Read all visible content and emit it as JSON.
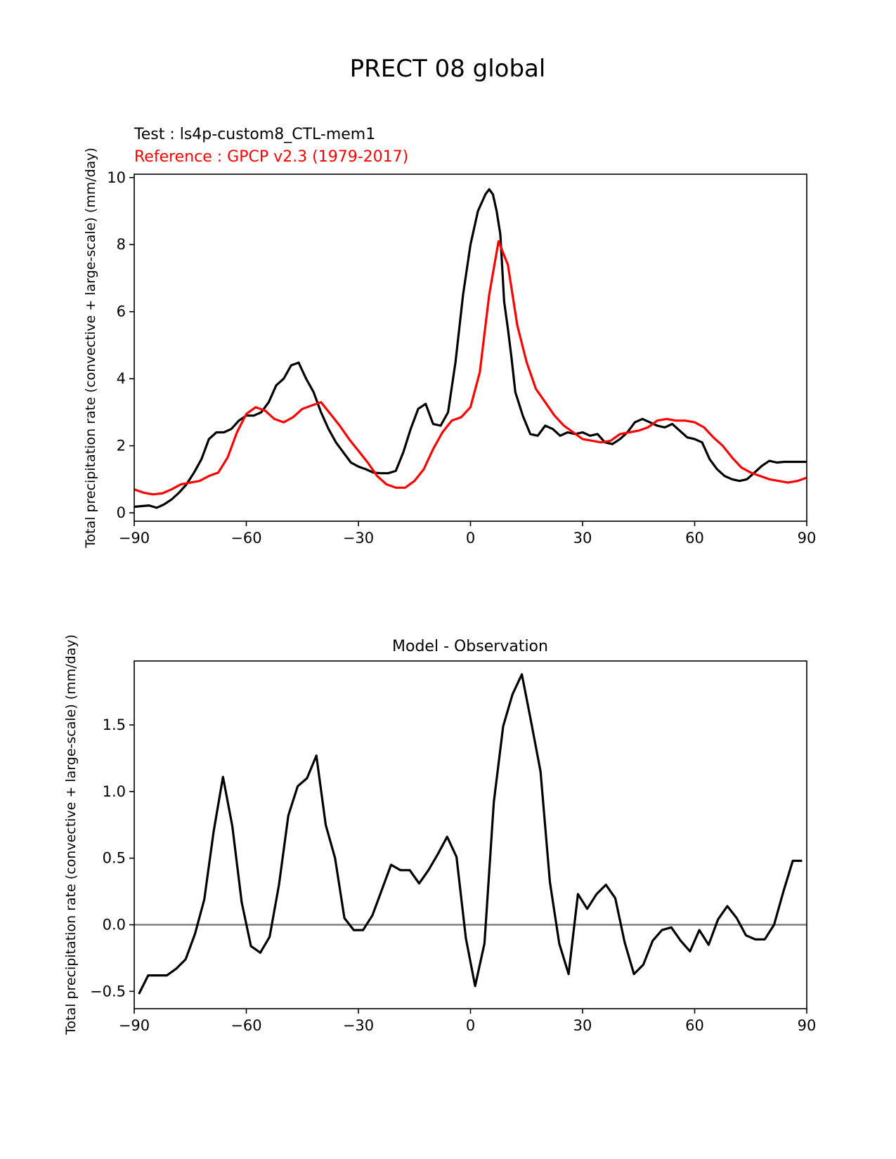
{
  "figure_title": "PRECT 08 global",
  "chart_data": [
    {
      "type": "line",
      "test_label": "Test : ls4p-custom8_CTL-mem1",
      "reference_label": "Reference : GPCP v2.3 (1979-2017)",
      "ylabel": "Total precipitation rate (convective + large-scale) (mm/day)",
      "xlim": [
        -90,
        90
      ],
      "ylim": [
        -0.25,
        10.1
      ],
      "xticks": [
        -90,
        -60,
        -30,
        0,
        30,
        60,
        90
      ],
      "xtick_labels": [
        "−90",
        "−60",
        "−30",
        "0",
        "30",
        "60",
        "90"
      ],
      "yticks": [
        0,
        2,
        4,
        6,
        8,
        10
      ],
      "ytick_labels": [
        "0",
        "2",
        "4",
        "6",
        "8",
        "10"
      ],
      "series": [
        {
          "name": "Test : ls4p-custom8_CTL-mem1",
          "color": "#000000",
          "x": [
            -90,
            -88,
            -86,
            -84,
            -82,
            -80,
            -78,
            -76,
            -74,
            -72,
            -70,
            -68,
            -66,
            -64,
            -62,
            -60,
            -58,
            -56,
            -54,
            -52,
            -50,
            -48,
            -46,
            -44,
            -42,
            -40,
            -38,
            -36,
            -34,
            -32,
            -30,
            -28,
            -26,
            -24,
            -22,
            -20,
            -18,
            -16,
            -14,
            -12,
            -10,
            -8,
            -6,
            -4,
            -2,
            0,
            2,
            4,
            5,
            6,
            7,
            8,
            9,
            10,
            11,
            12,
            14,
            16,
            18,
            20,
            22,
            24,
            26,
            28,
            30,
            32,
            34,
            36,
            38,
            40,
            42,
            44,
            46,
            48,
            50,
            52,
            54,
            56,
            58,
            60,
            62,
            64,
            66,
            68,
            70,
            72,
            74,
            76,
            78,
            80,
            82,
            84,
            86,
            88,
            90
          ],
          "values": [
            0.18,
            0.2,
            0.22,
            0.15,
            0.25,
            0.4,
            0.6,
            0.85,
            1.2,
            1.6,
            2.2,
            2.4,
            2.4,
            2.5,
            2.75,
            2.9,
            2.9,
            3.0,
            3.3,
            3.8,
            4.0,
            4.4,
            4.48,
            4.0,
            3.6,
            3.0,
            2.5,
            2.1,
            1.8,
            1.5,
            1.38,
            1.3,
            1.2,
            1.18,
            1.18,
            1.25,
            1.8,
            2.5,
            3.1,
            3.25,
            2.65,
            2.6,
            3.0,
            4.5,
            6.5,
            8.0,
            9.0,
            9.5,
            9.65,
            9.5,
            9.0,
            8.3,
            6.3,
            5.5,
            4.6,
            3.6,
            2.9,
            2.35,
            2.3,
            2.6,
            2.5,
            2.3,
            2.4,
            2.35,
            2.4,
            2.3,
            2.35,
            2.1,
            2.05,
            2.2,
            2.4,
            2.7,
            2.8,
            2.7,
            2.6,
            2.55,
            2.65,
            2.45,
            2.25,
            2.2,
            2.1,
            1.6,
            1.3,
            1.1,
            1.0,
            0.95,
            1.0,
            1.2,
            1.4,
            1.55,
            1.5,
            1.52,
            1.52,
            1.52,
            1.52
          ],
          "x_note": "sampled"
        },
        {
          "name": "Reference : GPCP v2.3 (1979-2017)",
          "color": "#ff0000",
          "x": [
            -90,
            -87.5,
            -85,
            -82.5,
            -80,
            -77.5,
            -75,
            -72.5,
            -70,
            -67.5,
            -65,
            -62.5,
            -60,
            -57.5,
            -55,
            -52.5,
            -50,
            -47.5,
            -45,
            -42.5,
            -40,
            -37.5,
            -35,
            -32.5,
            -30,
            -27.5,
            -25,
            -22.5,
            -20,
            -17.5,
            -15,
            -12.5,
            -10,
            -7.5,
            -5,
            -2.5,
            0,
            2.5,
            5,
            7.5,
            10,
            12.5,
            15,
            17.5,
            20,
            22.5,
            25,
            27.5,
            30,
            32.5,
            35,
            37.5,
            40,
            42.5,
            45,
            47.5,
            50,
            52.5,
            55,
            57.5,
            60,
            62.5,
            65,
            67.5,
            70,
            72.5,
            75,
            77.5,
            80,
            82.5,
            85,
            87.5,
            90
          ],
          "values": [
            0.7,
            0.6,
            0.55,
            0.58,
            0.7,
            0.85,
            0.9,
            0.95,
            1.1,
            1.2,
            1.65,
            2.4,
            2.95,
            3.15,
            3.05,
            2.8,
            2.7,
            2.85,
            3.1,
            3.2,
            3.3,
            2.95,
            2.6,
            2.2,
            1.85,
            1.5,
            1.1,
            0.85,
            0.75,
            0.75,
            0.95,
            1.3,
            1.9,
            2.4,
            2.75,
            2.85,
            3.15,
            4.2,
            6.5,
            8.1,
            7.4,
            5.6,
            4.5,
            3.7,
            3.3,
            2.9,
            2.6,
            2.4,
            2.2,
            2.15,
            2.1,
            2.15,
            2.35,
            2.4,
            2.45,
            2.55,
            2.75,
            2.8,
            2.75,
            2.75,
            2.7,
            2.55,
            2.25,
            2.0,
            1.65,
            1.35,
            1.2,
            1.1,
            1.0,
            0.95,
            0.9,
            0.95,
            1.05
          ]
        }
      ]
    },
    {
      "type": "line",
      "title": "Model - Observation",
      "ylabel": "Total precipitation rate (convective + large-scale) (mm/day)",
      "xlim": [
        -90,
        90
      ],
      "ylim": [
        -0.63,
        1.98
      ],
      "xticks": [
        -90,
        -60,
        -30,
        0,
        30,
        60,
        90
      ],
      "xtick_labels": [
        "−90",
        "−60",
        "−30",
        "0",
        "30",
        "60",
        "90"
      ],
      "yticks": [
        -0.5,
        0.0,
        0.5,
        1.0,
        1.5
      ],
      "ytick_labels": [
        "−0.5",
        "0.0",
        "0.5",
        "1.0",
        "1.5"
      ],
      "zero_line_color": "#808080",
      "series": [
        {
          "name": "Model - Observation",
          "color": "#000000",
          "x": [
            -88.75,
            -86.25,
            -83.75,
            -81.25,
            -78.75,
            -76.25,
            -73.75,
            -71.25,
            -68.75,
            -66.25,
            -63.75,
            -61.25,
            -58.75,
            -56.25,
            -53.75,
            -51.25,
            -48.75,
            -46.25,
            -43.75,
            -41.25,
            -38.75,
            -36.25,
            -33.75,
            -31.25,
            -28.75,
            -26.25,
            -23.75,
            -21.25,
            -18.75,
            -16.25,
            -13.75,
            -11.25,
            -8.75,
            -6.25,
            -3.75,
            -1.25,
            1.25,
            3.75,
            6.25,
            8.75,
            11.25,
            13.75,
            16.25,
            18.75,
            21.25,
            23.75,
            26.25,
            28.75,
            31.25,
            33.75,
            36.25,
            38.75,
            41.25,
            43.75,
            46.25,
            48.75,
            51.25,
            53.75,
            56.25,
            58.75,
            61.25,
            63.75,
            66.25,
            68.75,
            71.25,
            73.75,
            76.25,
            78.75,
            81.25,
            83.75,
            86.25,
            88.75
          ],
          "values": [
            -0.52,
            -0.38,
            -0.38,
            -0.38,
            -0.33,
            -0.26,
            -0.07,
            0.19,
            0.7,
            1.11,
            0.74,
            0.17,
            -0.16,
            -0.21,
            -0.09,
            0.3,
            0.82,
            1.04,
            1.1,
            1.27,
            0.75,
            0.5,
            0.05,
            -0.04,
            -0.04,
            0.07,
            0.26,
            0.45,
            0.41,
            0.41,
            0.31,
            0.41,
            0.53,
            0.66,
            0.51,
            -0.1,
            -0.46,
            -0.14,
            0.92,
            1.49,
            1.73,
            1.88,
            1.52,
            1.15,
            0.32,
            -0.14,
            -0.37,
            0.23,
            0.12,
            0.23,
            0.3,
            0.2,
            -0.13,
            -0.37,
            -0.3,
            -0.12,
            -0.04,
            -0.02,
            -0.12,
            -0.2,
            -0.04,
            -0.15,
            0.04,
            0.14,
            0.05,
            -0.08,
            -0.11,
            -0.11,
            0.0,
            0.25,
            0.48,
            0.48
          ]
        }
      ]
    }
  ]
}
